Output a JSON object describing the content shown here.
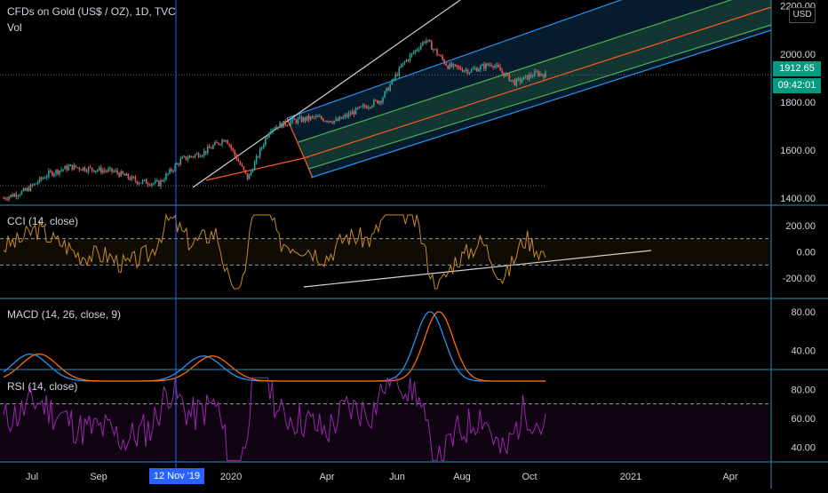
{
  "header": {
    "symbol_title": "CFDs on Gold (US$ / OZ), 1D, TVC",
    "volume_label": "Vol",
    "currency": "USD"
  },
  "badges": {
    "last_price": "1912.65",
    "countdown": "09:42:01",
    "crosshair_date": "12 Nov '19"
  },
  "panes": {
    "cci_label": "CCI (14, close)",
    "macd_label": "MACD (14, 26, close, 9)",
    "rsi_label": "RSI (14, close)"
  },
  "colors": {
    "background": "#000000",
    "up": "#26a69a",
    "down": "#ef5350",
    "cci": "#c68a2a",
    "macd": "#2196f3",
    "signal": "#ff6d00",
    "rsi": "#9c27b0",
    "crosshair": "#2962ff",
    "pane_border": "#2a8fbf",
    "channel_outer": "#2196f3",
    "channel_inner": "#4caf50",
    "channel_median": "#ff5722",
    "trendline": "#d1d4dc"
  },
  "chart_data": {
    "type": "candlestick",
    "x_axis_labels": [
      "Jul",
      "Sep",
      "2020",
      "Apr",
      "Jun",
      "Aug",
      "Oct",
      "2021",
      "Apr"
    ],
    "price_pane": {
      "title": "CFDs on Gold (US$ / OZ), 1D, TVC",
      "y_ticks": [
        1400,
        1600,
        1800,
        2000,
        2200
      ],
      "y_tick_labels": [
        "1400.00",
        "1600.00",
        "1800.00",
        "2000.00",
        "2200.00"
      ],
      "ylim": [
        1370,
        2210
      ],
      "last_price": 1912.65,
      "low_level": 1451,
      "close_series": [
        {
          "t": 0,
          "v": 1400
        },
        {
          "t": 0.05,
          "v": 1430
        },
        {
          "t": 0.1,
          "v": 1500
        },
        {
          "t": 0.15,
          "v": 1530
        },
        {
          "t": 0.2,
          "v": 1520
        },
        {
          "t": 0.25,
          "v": 1510
        },
        {
          "t": 0.3,
          "v": 1470
        },
        {
          "t": 0.35,
          "v": 1460
        },
        {
          "t": 0.4,
          "v": 1560
        },
        {
          "t": 0.45,
          "v": 1590
        },
        {
          "t": 0.5,
          "v": 1650
        },
        {
          "t": 0.55,
          "v": 1480
        },
        {
          "t": 0.6,
          "v": 1690
        },
        {
          "t": 0.65,
          "v": 1720
        },
        {
          "t": 0.7,
          "v": 1735
        },
        {
          "t": 0.75,
          "v": 1720
        },
        {
          "t": 0.8,
          "v": 1770
        },
        {
          "t": 0.85,
          "v": 1810
        },
        {
          "t": 0.9,
          "v": 1960
        },
        {
          "t": 0.95,
          "v": 2060
        },
        {
          "t": 1.0,
          "v": 1950
        },
        {
          "t": 1.05,
          "v": 1930
        },
        {
          "t": 1.1,
          "v": 1960
        },
        {
          "t": 1.15,
          "v": 1880
        },
        {
          "t": 1.2,
          "v": 1920
        },
        {
          "t": 1.22,
          "v": 1912.65
        }
      ]
    },
    "cci_pane": {
      "title": "CCI (14, close)",
      "y_tick_labels": [
        "200.00",
        "0.00",
        "-200.00"
      ],
      "ylim": [
        -300,
        300
      ],
      "bands": [
        100,
        -100
      ]
    },
    "macd_pane": {
      "title": "MACD (14, 26, close, 9)",
      "y_tick_labels": [
        "80.00",
        "40.00"
      ],
      "ylim": [
        20,
        90
      ],
      "series": [
        "MACD",
        "Signal"
      ]
    },
    "rsi_pane": {
      "title": "RSI (14, close)",
      "y_tick_labels": [
        "80.00",
        "60.00",
        "40.00"
      ],
      "ylim": [
        30,
        90
      ],
      "bands": [
        70,
        30
      ]
    }
  }
}
